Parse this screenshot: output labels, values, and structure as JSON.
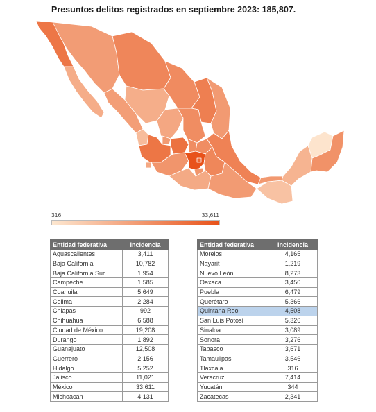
{
  "title": "Presuntos delitos registrados en septiembre 2023: 185,807.",
  "legend": {
    "min_label": "316",
    "max_label": "33,611",
    "color_min": "#fde7d0",
    "color_max": "#e8521a"
  },
  "table": {
    "headers": {
      "state": "Entidad federativa",
      "incidence": "Incidencia"
    },
    "left_rows": [
      {
        "state": "Aguascalientes",
        "value": "3,411"
      },
      {
        "state": "Baja California",
        "value": "10,782"
      },
      {
        "state": "Baja California Sur",
        "value": "1,954"
      },
      {
        "state": "Campeche",
        "value": "1,585"
      },
      {
        "state": "Coahuila",
        "value": "5,649"
      },
      {
        "state": "Colima",
        "value": "2,284"
      },
      {
        "state": "Chiapas",
        "value": "992"
      },
      {
        "state": "Chihuahua",
        "value": "6,588"
      },
      {
        "state": "Ciudad de México",
        "value": "19,208"
      },
      {
        "state": "Durango",
        "value": "1,892"
      },
      {
        "state": "Guanajuato",
        "value": "12,508"
      },
      {
        "state": "Guerrero",
        "value": "2,156"
      },
      {
        "state": "Hidalgo",
        "value": "5,252"
      },
      {
        "state": "Jalisco",
        "value": "11,021"
      },
      {
        "state": "México",
        "value": "33,611"
      },
      {
        "state": "Michoacán",
        "value": "4,131"
      }
    ],
    "right_rows": [
      {
        "state": "Morelos",
        "value": "4,165"
      },
      {
        "state": "Nayarit",
        "value": "1,219"
      },
      {
        "state": "Nuevo León",
        "value": "8,273"
      },
      {
        "state": "Oaxaca",
        "value": "3,450"
      },
      {
        "state": "Puebla",
        "value": "6,479"
      },
      {
        "state": "Querétaro",
        "value": "5,366"
      },
      {
        "state": "Quintana Roo",
        "value": "4,508",
        "highlighted": true
      },
      {
        "state": "San Luis Potosí",
        "value": "5,326"
      },
      {
        "state": "Sinaloa",
        "value": "3,089"
      },
      {
        "state": "Sonora",
        "value": "3,276"
      },
      {
        "state": "Tabasco",
        "value": "3,671"
      },
      {
        "state": "Tamaulipas",
        "value": "3,546"
      },
      {
        "state": "Tlaxcala",
        "value": "316"
      },
      {
        "state": "Veracruz",
        "value": "7,414"
      },
      {
        "state": "Yucatán",
        "value": "344"
      },
      {
        "state": "Zacatecas",
        "value": "2,341"
      }
    ]
  }
}
